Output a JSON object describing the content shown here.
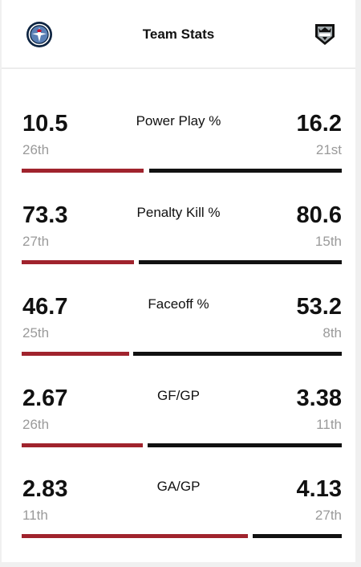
{
  "header": {
    "title": "Team Stats",
    "left_team_logo": "winnipeg-jets-logo",
    "right_team_logo": "los-angeles-kings-logo"
  },
  "colors": {
    "left_bar": "#a0232d",
    "right_bar": "#111111",
    "rank_text": "#9a9a9a"
  },
  "stats": [
    {
      "label": "Power Play %",
      "left_value": "10.5",
      "left_rank": "26th",
      "right_value": "16.2",
      "right_rank": "21st"
    },
    {
      "label": "Penalty Kill %",
      "left_value": "73.3",
      "left_rank": "27th",
      "right_value": "80.6",
      "right_rank": "15th"
    },
    {
      "label": "Faceoff %",
      "left_value": "46.7",
      "left_rank": "25th",
      "right_value": "53.2",
      "right_rank": "8th"
    },
    {
      "label": "GF/GP",
      "left_value": "2.67",
      "left_rank": "26th",
      "right_value": "3.38",
      "right_rank": "11th"
    },
    {
      "label": "GA/GP",
      "left_value": "2.83",
      "left_rank": "11th",
      "right_value": "4.13",
      "right_rank": "27th"
    }
  ]
}
